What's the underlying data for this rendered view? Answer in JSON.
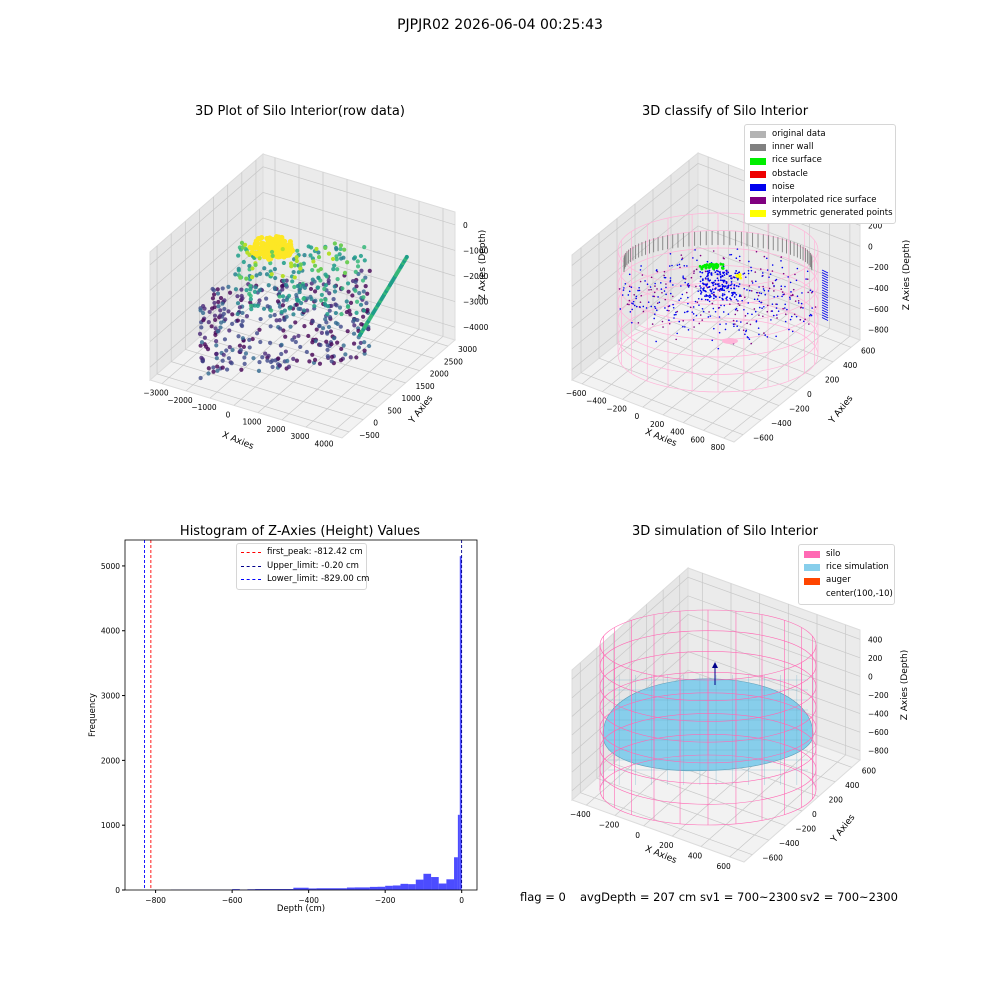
{
  "suptitle": "PJPJR02 2026-06-04 00:25:43",
  "chart_data": [
    {
      "type": "scatter",
      "title": "3D Plot of Silo Interior(row data)",
      "xlabel": "X Axies",
      "ylabel": "Y Axies",
      "zlabel": "Z Axies (Depth)",
      "xticks": [
        "−3000",
        "−2000",
        "−1000",
        "0",
        "1000",
        "2000",
        "3000",
        "4000"
      ],
      "yticks": [
        "−500",
        "0",
        "500",
        "1000",
        "1500",
        "2000",
        "2500",
        "3000"
      ],
      "zticks": [
        "−4000",
        "−3000",
        "−2000",
        "−1000",
        "0"
      ],
      "xlim": [
        -3500,
        4500
      ],
      "ylim": [
        -700,
        3200
      ],
      "zlim": [
        -4500,
        200
      ],
      "colormap": "viridis"
    },
    {
      "type": "scatter",
      "title": "3D classify of Silo Interior",
      "xlabel": "X Axies",
      "ylabel": "Y Axies",
      "zlabel": "Z Axies (Depth)",
      "xticks": [
        "−600",
        "−400",
        "−200",
        "0",
        "200",
        "400",
        "600",
        "800"
      ],
      "yticks": [
        "−600",
        "−400",
        "−200",
        "0",
        "200",
        "400",
        "600"
      ],
      "zticks": [
        "−800",
        "−600",
        "−400",
        "−200",
        "0",
        "200"
      ],
      "zticks_partial": [
        "400"
      ],
      "legend": [
        {
          "name": "original data",
          "color": "#b3b3b3"
        },
        {
          "name": "inner wall",
          "color": "#808080"
        },
        {
          "name": "rice surface",
          "color": "#00ee00"
        },
        {
          "name": "obstacle",
          "color": "#ee0000"
        },
        {
          "name": "noise",
          "color": "#0000ee"
        },
        {
          "name": "interpolated rice surface",
          "color": "#800080"
        },
        {
          "name": "symmetric generated points",
          "color": "#ffff00"
        }
      ],
      "legend_position": "top-right"
    },
    {
      "type": "bar",
      "title": "Histogram of Z-Axies (Height) Values",
      "xlabel": "Depth (cm)",
      "ylabel": "Frequency",
      "xticks": [
        "−800",
        "−600",
        "−400",
        "−200",
        "0"
      ],
      "yticks": [
        "0",
        "1000",
        "2000",
        "3000",
        "4000",
        "5000"
      ],
      "xlim": [
        -880,
        40
      ],
      "ylim": [
        0,
        5400
      ],
      "bar_color": "#0000ff",
      "bins": [
        {
          "x0": -760,
          "x1": -600,
          "v": 5
        },
        {
          "x0": -600,
          "x1": -580,
          "v": 14
        },
        {
          "x0": -580,
          "x1": -560,
          "v": 6
        },
        {
          "x0": -560,
          "x1": -540,
          "v": 12
        },
        {
          "x0": -540,
          "x1": -440,
          "v": 15
        },
        {
          "x0": -440,
          "x1": -420,
          "v": 35
        },
        {
          "x0": -420,
          "x1": -400,
          "v": 35
        },
        {
          "x0": -400,
          "x1": -380,
          "v": 24
        },
        {
          "x0": -380,
          "x1": -300,
          "v": 27
        },
        {
          "x0": -300,
          "x1": -280,
          "v": 38
        },
        {
          "x0": -280,
          "x1": -240,
          "v": 40
        },
        {
          "x0": -240,
          "x1": -220,
          "v": 48
        },
        {
          "x0": -220,
          "x1": -200,
          "v": 50
        },
        {
          "x0": -200,
          "x1": -180,
          "v": 65
        },
        {
          "x0": -180,
          "x1": -160,
          "v": 70
        },
        {
          "x0": -160,
          "x1": -140,
          "v": 95
        },
        {
          "x0": -140,
          "x1": -120,
          "v": 90
        },
        {
          "x0": -120,
          "x1": -100,
          "v": 160
        },
        {
          "x0": -100,
          "x1": -80,
          "v": 250
        },
        {
          "x0": -80,
          "x1": -60,
          "v": 200
        },
        {
          "x0": -60,
          "x1": -40,
          "v": 100
        },
        {
          "x0": -40,
          "x1": -20,
          "v": 165
        },
        {
          "x0": -20,
          "x1": -10,
          "v": 505
        },
        {
          "x0": -10,
          "x1": -5,
          "v": 1160
        },
        {
          "x0": -5,
          "x1": 0,
          "v": 5150
        }
      ],
      "vlines": [
        {
          "label": "first_peak: -812.42 cm",
          "x": -812.42,
          "color": "#ff0000"
        },
        {
          "label": "Upper_limit: -0.20 cm",
          "x": -0.2,
          "color": "#00008b"
        },
        {
          "label": "Lower_limit: -829.00 cm",
          "x": -829.0,
          "color": "#0000ff"
        }
      ],
      "legend_position": "top-center"
    },
    {
      "type": "surface",
      "title": "3D simulation of Silo Interior",
      "xlabel": "X Axies",
      "ylabel": "Y Axies",
      "zlabel": "Z Axies (Depth)",
      "xticks": [
        "−400",
        "−200",
        "0",
        "200",
        "400",
        "600"
      ],
      "yticks": [
        "−600",
        "−400",
        "−200",
        "0",
        "200",
        "400",
        "600"
      ],
      "zticks": [
        "−800",
        "−600",
        "−400",
        "−200",
        "0",
        "200",
        "400"
      ],
      "legend": [
        {
          "name": "silo",
          "color": "#ff69b4"
        },
        {
          "name": "rice simulation",
          "color": "#87ceeb"
        },
        {
          "name": "auger",
          "color": "#ff4500"
        },
        {
          "name": "center(100,-10)",
          "color": ""
        }
      ],
      "legend_position": "top-right"
    }
  ],
  "status": {
    "flag": "flag = 0",
    "avg_depth": "avgDepth = 207 cm",
    "sv1": "sv1 = 700~2300",
    "sv2": "sv2 = 700~2300"
  }
}
